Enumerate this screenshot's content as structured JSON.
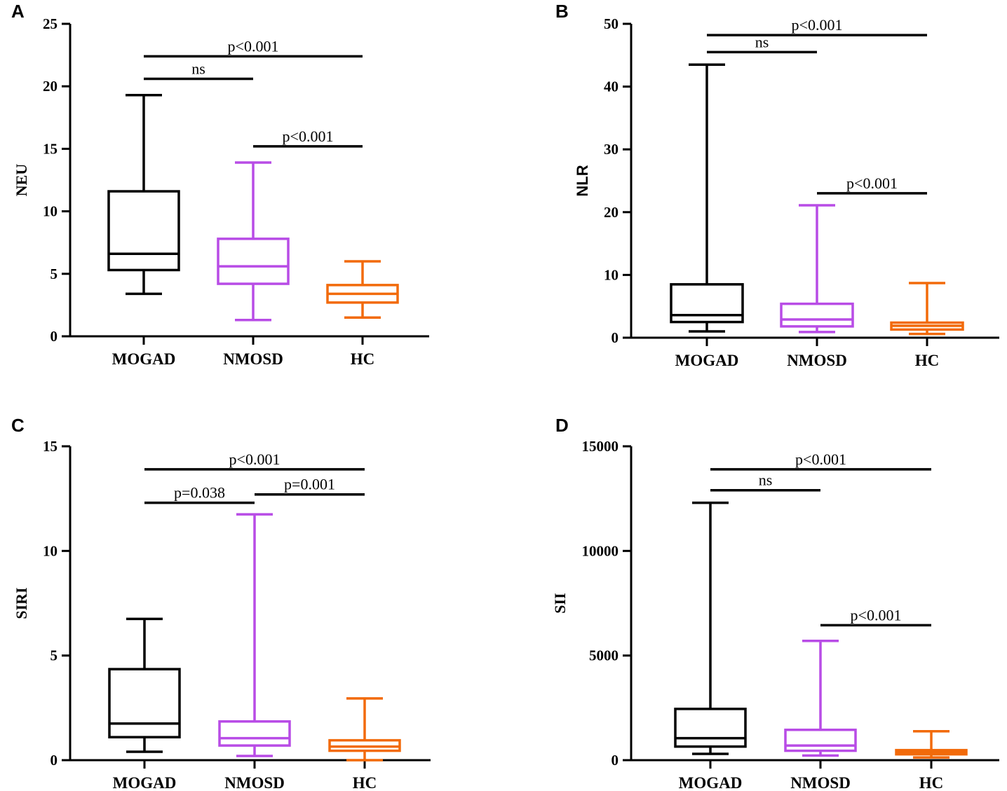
{
  "chart_data": [
    {
      "panel": "A",
      "type": "box",
      "ylabel": "NEU",
      "ylim": [
        0,
        25
      ],
      "yticks": [
        "0",
        "5",
        "10",
        "15",
        "20",
        "25"
      ],
      "categories": [
        "MOGAD",
        "NMOSD",
        "HC"
      ],
      "series": [
        {
          "name": "MOGAD",
          "color": "#000000",
          "min": 3.4,
          "q1": 5.3,
          "median": 6.6,
          "q3": 11.6,
          "max": 19.3
        },
        {
          "name": "NMOSD",
          "color": "#b84ce6",
          "min": 1.3,
          "q1": 4.2,
          "median": 5.6,
          "q3": 7.8,
          "max": 13.9
        },
        {
          "name": "HC",
          "color": "#f26a0a",
          "min": 1.5,
          "q1": 2.7,
          "median": 3.4,
          "q3": 4.1,
          "max": 6.0
        }
      ],
      "comparisons": [
        {
          "from": 0,
          "to": 2,
          "y": 22.4,
          "label": "p<0.001"
        },
        {
          "from": 0,
          "to": 1,
          "y": 20.6,
          "label": "ns"
        },
        {
          "from": 1,
          "to": 2,
          "y": 15.2,
          "label": "p<0.001"
        }
      ]
    },
    {
      "panel": "B",
      "type": "box",
      "ylabel": "NLR",
      "ylim": [
        0,
        50
      ],
      "yticks": [
        "0",
        "10",
        "20",
        "30",
        "40",
        "50"
      ],
      "categories": [
        "MOGAD",
        "NMOSD",
        "HC"
      ],
      "series": [
        {
          "name": "MOGAD",
          "color": "#000000",
          "min": 1.0,
          "q1": 2.5,
          "median": 3.6,
          "q3": 8.5,
          "max": 43.5
        },
        {
          "name": "NMOSD",
          "color": "#b84ce6",
          "min": 0.9,
          "q1": 1.8,
          "median": 2.9,
          "q3": 5.4,
          "max": 21.1
        },
        {
          "name": "HC",
          "color": "#f26a0a",
          "min": 0.6,
          "q1": 1.3,
          "median": 1.9,
          "q3": 2.4,
          "max": 8.7
        }
      ],
      "comparisons": [
        {
          "from": 0,
          "to": 2,
          "y": 48.2,
          "label": "p<0.001"
        },
        {
          "from": 0,
          "to": 1,
          "y": 45.5,
          "label": "ns"
        },
        {
          "from": 1,
          "to": 2,
          "y": 23.0,
          "label": "p<0.001"
        }
      ]
    },
    {
      "panel": "C",
      "type": "box",
      "ylabel": "SIRI",
      "ylim": [
        0,
        15
      ],
      "yticks": [
        "0",
        "5",
        "10",
        "15"
      ],
      "categories": [
        "MOGAD",
        "NMOSD",
        "HC"
      ],
      "series": [
        {
          "name": "MOGAD",
          "color": "#000000",
          "min": 0.4,
          "q1": 1.1,
          "median": 1.75,
          "q3": 4.35,
          "max": 6.75
        },
        {
          "name": "NMOSD",
          "color": "#b84ce6",
          "min": 0.2,
          "q1": 0.7,
          "median": 1.05,
          "q3": 1.85,
          "max": 11.75
        },
        {
          "name": "HC",
          "color": "#f26a0a",
          "min": 0.0,
          "q1": 0.45,
          "median": 0.65,
          "q3": 0.95,
          "max": 2.95
        }
      ],
      "comparisons": [
        {
          "from": 0,
          "to": 2,
          "y": 13.9,
          "label": "p<0.001"
        },
        {
          "from": 0,
          "to": 1,
          "y": 12.3,
          "label": "p=0.038"
        },
        {
          "from": 1,
          "to": 2,
          "y": 12.7,
          "label": "p=0.001"
        }
      ]
    },
    {
      "panel": "D",
      "type": "box",
      "ylabel": "SII",
      "ylim": [
        0,
        15000
      ],
      "yticks": [
        "0",
        "5000",
        "10000",
        "15000"
      ],
      "categories": [
        "MOGAD",
        "NMOSD",
        "HC"
      ],
      "series": [
        {
          "name": "MOGAD",
          "color": "#000000",
          "min": 300,
          "q1": 650,
          "median": 1050,
          "q3": 2450,
          "max": 12300
        },
        {
          "name": "NMOSD",
          "color": "#b84ce6",
          "min": 220,
          "q1": 450,
          "median": 700,
          "q3": 1450,
          "max": 5700
        },
        {
          "name": "HC",
          "color": "#f26a0a",
          "min": 130,
          "q1": 280,
          "median": 380,
          "q3": 480,
          "max": 1380
        }
      ],
      "comparisons": [
        {
          "from": 0,
          "to": 2,
          "y": 13900,
          "label": "p<0.001"
        },
        {
          "from": 0,
          "to": 1,
          "y": 12900,
          "label": "ns"
        },
        {
          "from": 1,
          "to": 2,
          "y": 6450,
          "label": "p<0.001"
        }
      ]
    }
  ]
}
